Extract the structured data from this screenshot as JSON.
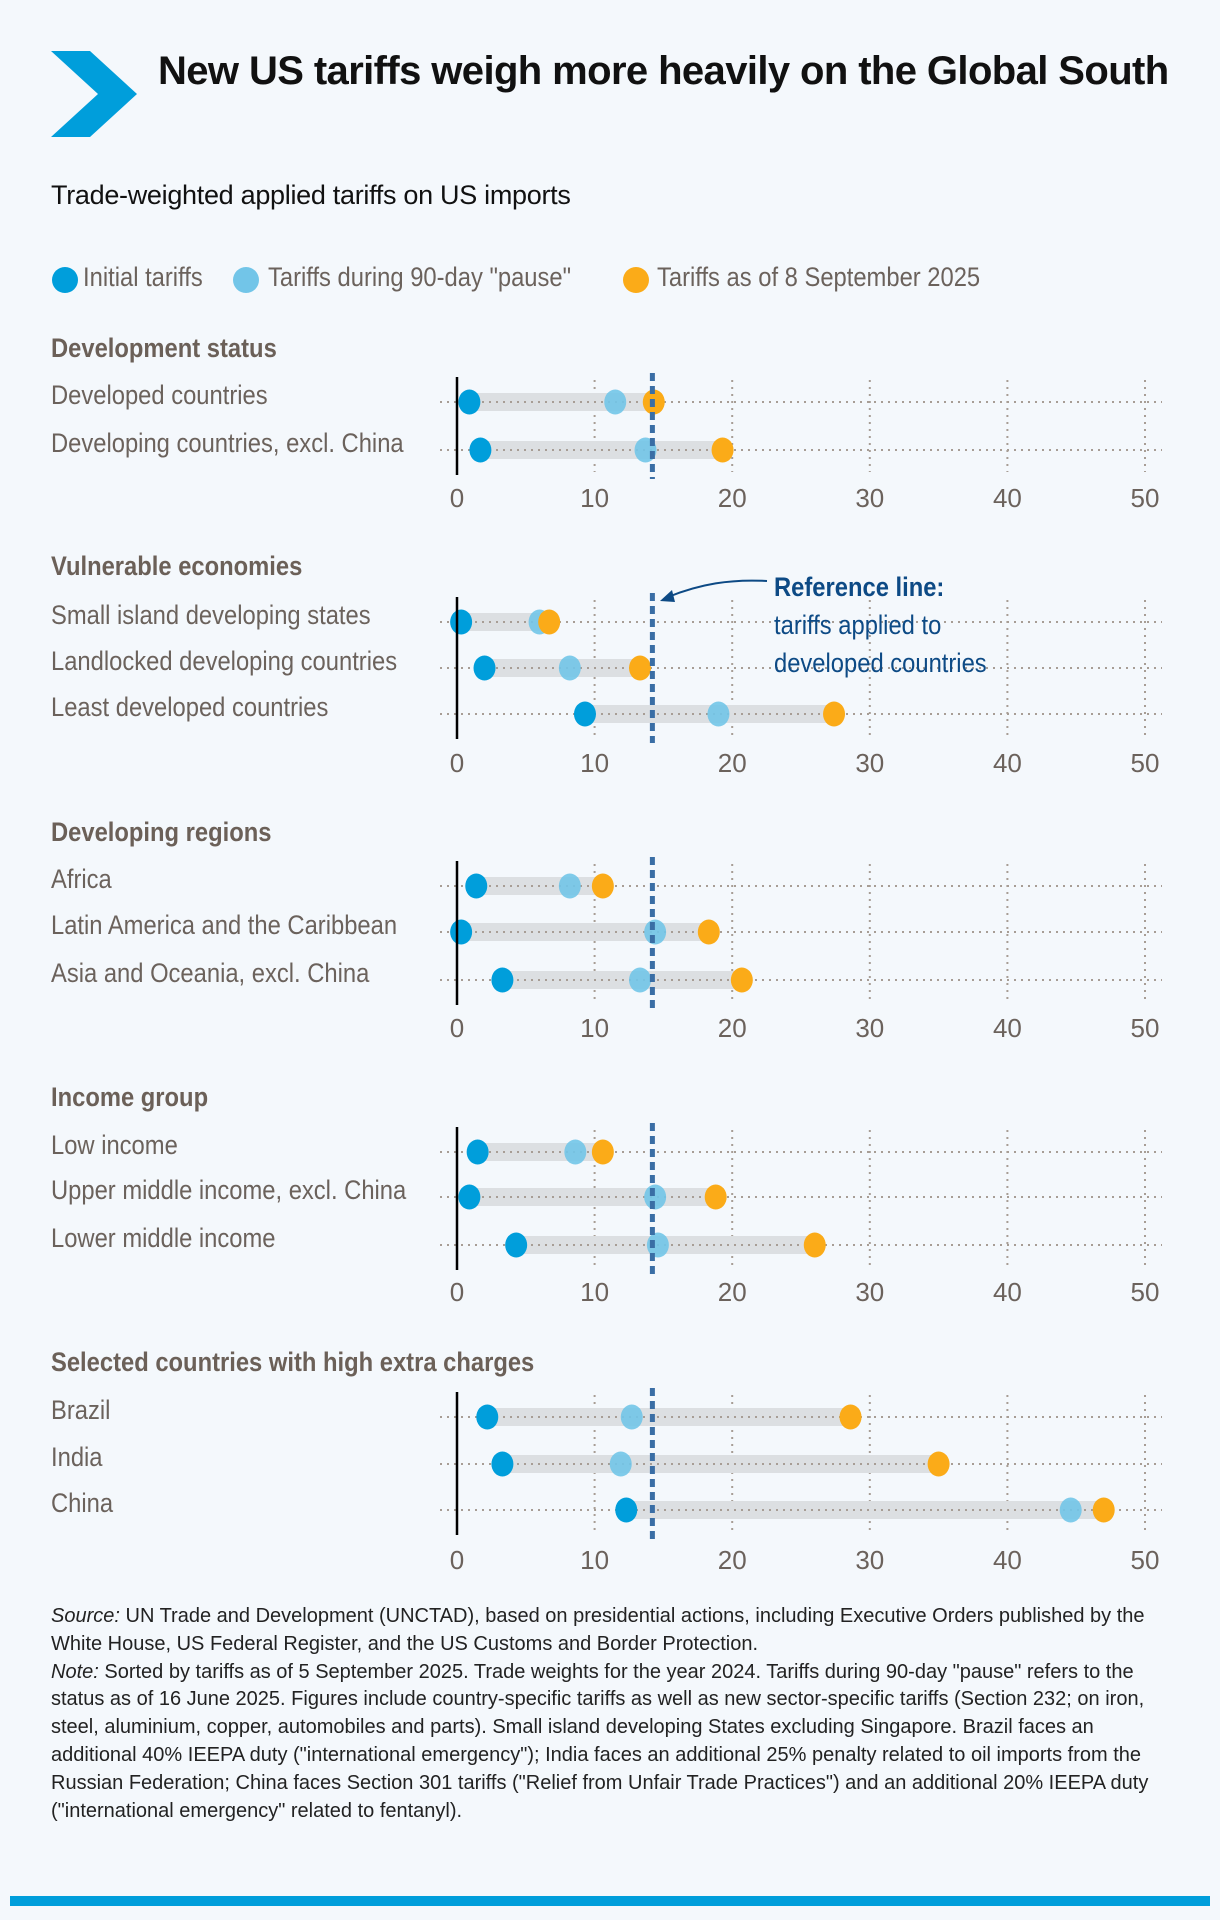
{
  "header": {
    "title": "New US tariffs weigh more heavily on the Global South",
    "subtitle": "Trade-weighted applied tariffs on US imports",
    "logo_icon": "chevron-right-icon"
  },
  "colors": {
    "background": "#f4f8fc",
    "initial": "#009edb",
    "pause": "#72c5e8",
    "september": "#fbab18",
    "reference_line": "#3a6ea5",
    "annotation": "#0d4a85",
    "accent": "#009edb"
  },
  "chart_data": {
    "type": "dot-range",
    "title": "Trade-weighted applied tariffs on US imports",
    "legend": [
      "Initial tariffs",
      "Tariffs during 90-day \"pause\"",
      "Tariffs as of 8 September 2025"
    ],
    "legend_placement": "top",
    "xlim": [
      0,
      50
    ],
    "xticks": [
      "0",
      "10",
      "20",
      "30",
      "40",
      "50"
    ],
    "grid": true,
    "reference_line": {
      "value": 14.2,
      "title": "Reference line:",
      "text_line1": "tariffs applied to",
      "text_line2": "developed countries"
    },
    "sections": [
      {
        "title": "Development status",
        "rows": [
          {
            "label": "Developed countries",
            "initial": 0.9,
            "pause": 11.5,
            "september": 14.3
          },
          {
            "label": "Developing countries, excl. China",
            "initial": 1.7,
            "pause": 13.7,
            "september": 19.3
          }
        ]
      },
      {
        "title": "Vulnerable economies",
        "rows": [
          {
            "label": "Small island developing states",
            "initial": 0.3,
            "pause": 6.0,
            "september": 6.7
          },
          {
            "label": "Landlocked developing countries",
            "initial": 2.0,
            "pause": 8.2,
            "september": 13.3
          },
          {
            "label": "Least developed countries",
            "initial": 9.3,
            "pause": 19.0,
            "september": 27.4
          }
        ]
      },
      {
        "title": "Developing regions",
        "rows": [
          {
            "label": "Africa",
            "initial": 1.4,
            "pause": 8.2,
            "september": 10.6
          },
          {
            "label": "Latin America and the Caribbean",
            "initial": 0.3,
            "pause": 14.4,
            "september": 18.3
          },
          {
            "label": "Asia and Oceania, excl. China",
            "initial": 3.3,
            "pause": 13.3,
            "september": 20.7
          }
        ]
      },
      {
        "title": "Income group",
        "rows": [
          {
            "label": "Low income",
            "initial": 1.5,
            "pause": 8.6,
            "september": 10.6
          },
          {
            "label": "Upper middle income, excl. China",
            "initial": 0.9,
            "pause": 14.4,
            "september": 18.8
          },
          {
            "label": "Lower middle income",
            "initial": 4.3,
            "pause": 14.6,
            "september": 26.0
          }
        ]
      },
      {
        "title": "Selected countries with high extra charges",
        "rows": [
          {
            "label": "Brazil",
            "initial": 2.2,
            "pause": 12.7,
            "september": 28.6
          },
          {
            "label": "India",
            "initial": 3.3,
            "pause": 11.9,
            "september": 35.0
          },
          {
            "label": "China",
            "initial": 12.3,
            "pause": 44.6,
            "september": 47.0
          }
        ]
      }
    ]
  },
  "notes": {
    "source_label": "Source:",
    "source_text": " UN Trade and Development (UNCTAD), based on presidential actions, including Executive Orders published by the White House, US Federal Register, and the US Customs and Border Protection.",
    "note_label": "Note:",
    "note_text": " Sorted by tariffs as of 5 September 2025. Trade weights for the year 2024. Tariffs during 90-day \"pause\" refers to the status as of 16 June 2025. Figures include country-specific tariffs as well as new sector-specific tariffs (Section 232; on iron, steel, aluminium, copper, automobiles and parts). Small island developing States excluding Singapore. Brazil faces an additional 40% IEEPA duty (\"international emergency\"); India faces an additional 25% penalty related to oil imports from the Russian Federation; China faces Section 301 tariffs (\"Relief from Unfair Trade Practices\") and an additional 20% IEEPA duty (\"international emergency\" related to fentanyl)."
  }
}
